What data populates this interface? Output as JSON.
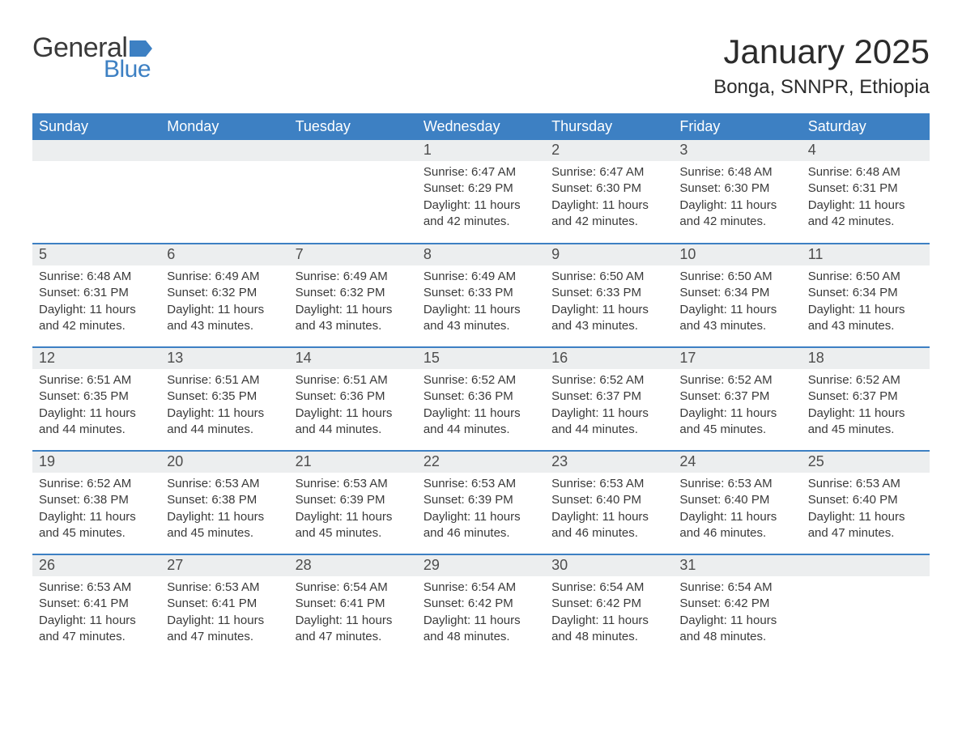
{
  "logo": {
    "word1": "General",
    "word2": "Blue"
  },
  "colors": {
    "header_bg": "#3d80c3",
    "header_text": "#ffffff",
    "daynum_bg": "#eceeef",
    "row_divider": "#3d80c3",
    "body_text": "#3a3a3a",
    "logo_blue": "#3d80c3",
    "flag_fill": "#3d80c3",
    "background": "#ffffff"
  },
  "typography": {
    "title_fontsize": 42,
    "location_fontsize": 24,
    "header_cell_fontsize": 18,
    "daynum_fontsize": 18,
    "body_fontsize": 15
  },
  "title": "January 2025",
  "location": "Bonga, SNNPR, Ethiopia",
  "day_headers": [
    "Sunday",
    "Monday",
    "Tuesday",
    "Wednesday",
    "Thursday",
    "Friday",
    "Saturday"
  ],
  "labels": {
    "sunrise_prefix": "Sunrise: ",
    "sunset_prefix": "Sunset: ",
    "daylight_prefix": "Daylight: ",
    "daylight_hours_word": " hours",
    "daylight_and_word": "and ",
    "daylight_minutes_word": " minutes."
  },
  "weeks": [
    [
      null,
      null,
      null,
      {
        "n": "1",
        "sunrise": "6:47 AM",
        "sunset": "6:29 PM",
        "dh": "11",
        "dm": "42"
      },
      {
        "n": "2",
        "sunrise": "6:47 AM",
        "sunset": "6:30 PM",
        "dh": "11",
        "dm": "42"
      },
      {
        "n": "3",
        "sunrise": "6:48 AM",
        "sunset": "6:30 PM",
        "dh": "11",
        "dm": "42"
      },
      {
        "n": "4",
        "sunrise": "6:48 AM",
        "sunset": "6:31 PM",
        "dh": "11",
        "dm": "42"
      }
    ],
    [
      {
        "n": "5",
        "sunrise": "6:48 AM",
        "sunset": "6:31 PM",
        "dh": "11",
        "dm": "42"
      },
      {
        "n": "6",
        "sunrise": "6:49 AM",
        "sunset": "6:32 PM",
        "dh": "11",
        "dm": "43"
      },
      {
        "n": "7",
        "sunrise": "6:49 AM",
        "sunset": "6:32 PM",
        "dh": "11",
        "dm": "43"
      },
      {
        "n": "8",
        "sunrise": "6:49 AM",
        "sunset": "6:33 PM",
        "dh": "11",
        "dm": "43"
      },
      {
        "n": "9",
        "sunrise": "6:50 AM",
        "sunset": "6:33 PM",
        "dh": "11",
        "dm": "43"
      },
      {
        "n": "10",
        "sunrise": "6:50 AM",
        "sunset": "6:34 PM",
        "dh": "11",
        "dm": "43"
      },
      {
        "n": "11",
        "sunrise": "6:50 AM",
        "sunset": "6:34 PM",
        "dh": "11",
        "dm": "43"
      }
    ],
    [
      {
        "n": "12",
        "sunrise": "6:51 AM",
        "sunset": "6:35 PM",
        "dh": "11",
        "dm": "44"
      },
      {
        "n": "13",
        "sunrise": "6:51 AM",
        "sunset": "6:35 PM",
        "dh": "11",
        "dm": "44"
      },
      {
        "n": "14",
        "sunrise": "6:51 AM",
        "sunset": "6:36 PM",
        "dh": "11",
        "dm": "44"
      },
      {
        "n": "15",
        "sunrise": "6:52 AM",
        "sunset": "6:36 PM",
        "dh": "11",
        "dm": "44"
      },
      {
        "n": "16",
        "sunrise": "6:52 AM",
        "sunset": "6:37 PM",
        "dh": "11",
        "dm": "44"
      },
      {
        "n": "17",
        "sunrise": "6:52 AM",
        "sunset": "6:37 PM",
        "dh": "11",
        "dm": "45"
      },
      {
        "n": "18",
        "sunrise": "6:52 AM",
        "sunset": "6:37 PM",
        "dh": "11",
        "dm": "45"
      }
    ],
    [
      {
        "n": "19",
        "sunrise": "6:52 AM",
        "sunset": "6:38 PM",
        "dh": "11",
        "dm": "45"
      },
      {
        "n": "20",
        "sunrise": "6:53 AM",
        "sunset": "6:38 PM",
        "dh": "11",
        "dm": "45"
      },
      {
        "n": "21",
        "sunrise": "6:53 AM",
        "sunset": "6:39 PM",
        "dh": "11",
        "dm": "45"
      },
      {
        "n": "22",
        "sunrise": "6:53 AM",
        "sunset": "6:39 PM",
        "dh": "11",
        "dm": "46"
      },
      {
        "n": "23",
        "sunrise": "6:53 AM",
        "sunset": "6:40 PM",
        "dh": "11",
        "dm": "46"
      },
      {
        "n": "24",
        "sunrise": "6:53 AM",
        "sunset": "6:40 PM",
        "dh": "11",
        "dm": "46"
      },
      {
        "n": "25",
        "sunrise": "6:53 AM",
        "sunset": "6:40 PM",
        "dh": "11",
        "dm": "47"
      }
    ],
    [
      {
        "n": "26",
        "sunrise": "6:53 AM",
        "sunset": "6:41 PM",
        "dh": "11",
        "dm": "47"
      },
      {
        "n": "27",
        "sunrise": "6:53 AM",
        "sunset": "6:41 PM",
        "dh": "11",
        "dm": "47"
      },
      {
        "n": "28",
        "sunrise": "6:54 AM",
        "sunset": "6:41 PM",
        "dh": "11",
        "dm": "47"
      },
      {
        "n": "29",
        "sunrise": "6:54 AM",
        "sunset": "6:42 PM",
        "dh": "11",
        "dm": "48"
      },
      {
        "n": "30",
        "sunrise": "6:54 AM",
        "sunset": "6:42 PM",
        "dh": "11",
        "dm": "48"
      },
      {
        "n": "31",
        "sunrise": "6:54 AM",
        "sunset": "6:42 PM",
        "dh": "11",
        "dm": "48"
      },
      null
    ]
  ]
}
